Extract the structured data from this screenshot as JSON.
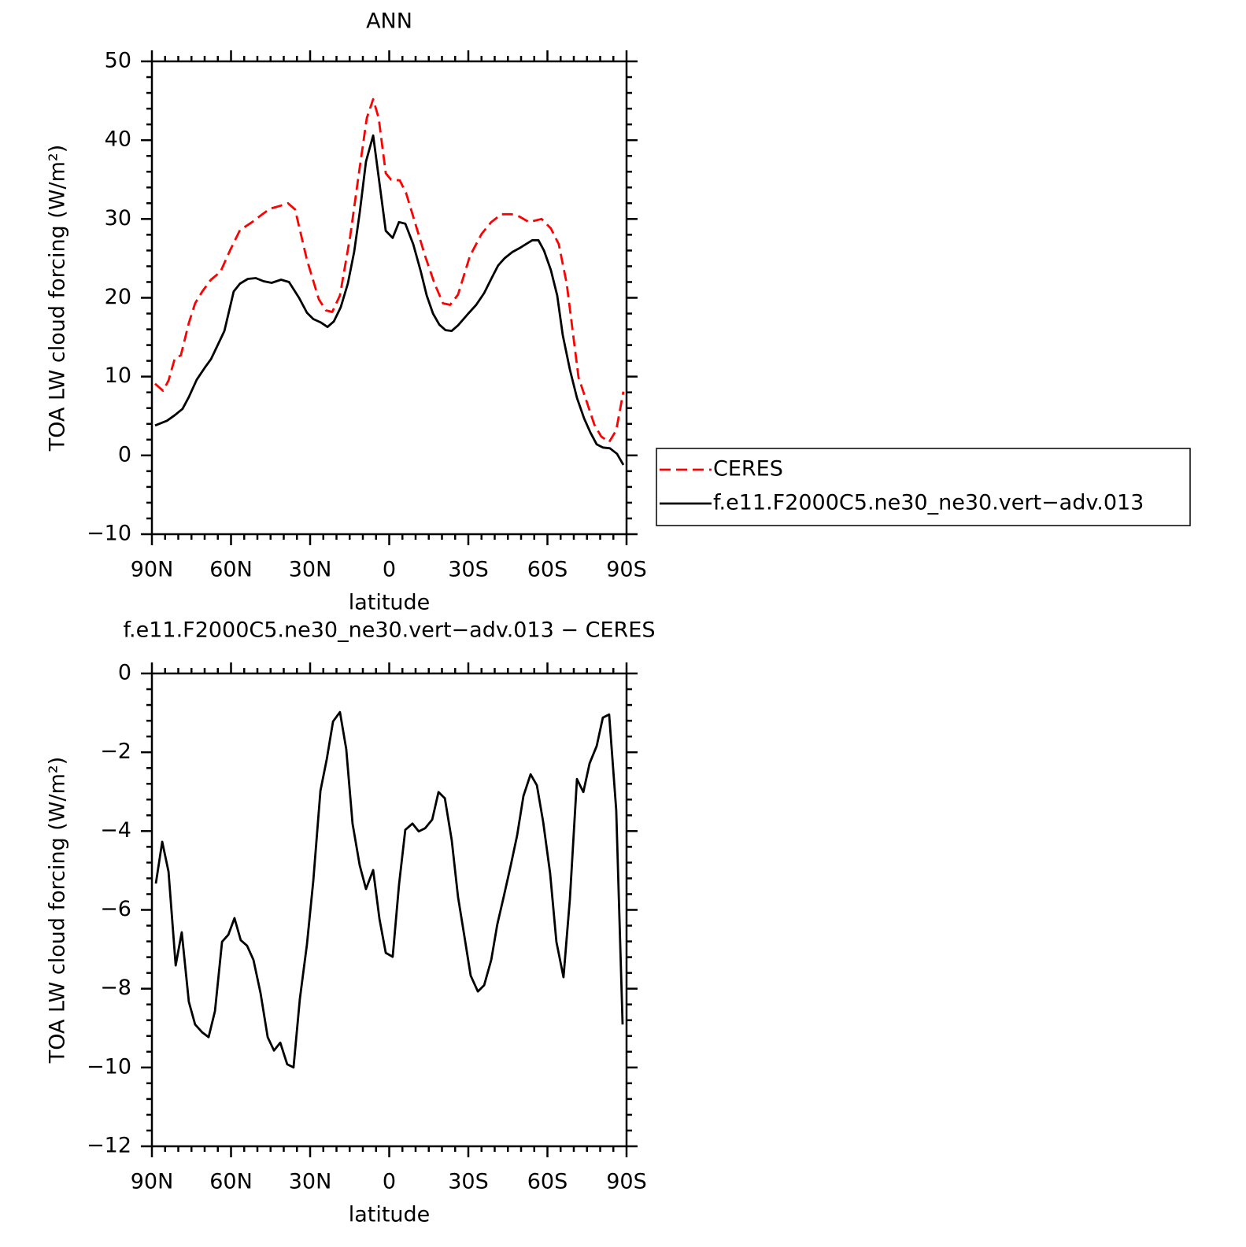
{
  "chart_data": [
    {
      "type": "line",
      "title": "ANN",
      "x_label": "latitude",
      "y_label": "TOA LW cloud forcing (W/m²)",
      "xlim": [
        90,
        -90
      ],
      "xticks": [
        {
          "value": 90,
          "label": "90N"
        },
        {
          "value": 60,
          "label": "60N"
        },
        {
          "value": 30,
          "label": "30N"
        },
        0,
        {
          "value": -30,
          "label": "30S"
        },
        {
          "value": -60,
          "label": "60S"
        },
        {
          "value": -90,
          "label": "90S"
        }
      ],
      "ylim": [
        -10,
        50
      ],
      "yticks": [
        {
          "value": -10,
          "label": "−10"
        },
        0,
        10,
        20,
        30,
        40,
        50
      ],
      "legend": "outside-right",
      "series": [
        {
          "name": "CERES",
          "color": "#ff0000",
          "dash": "dashed",
          "x": [
            88.8,
            85.8,
            83.7,
            81.3,
            79,
            76,
            73.6,
            70.9,
            67.6,
            64,
            60.4,
            56.6,
            52,
            48.5,
            45.2,
            41,
            38.4,
            35.7,
            31.2,
            26.7,
            24,
            21.6,
            18.7,
            14.8,
            11.5,
            8.5,
            6.1,
            4,
            1.3,
            -0.7,
            -4,
            -6.4,
            -10,
            -13.6,
            -17.2,
            -20.4,
            -23.1,
            -26.1,
            -30.6,
            -35,
            -38.7,
            -42.5,
            -46.4,
            -49.4,
            -53,
            -57.8,
            -61.3,
            -64.3,
            -67.3,
            -71.8,
            -74.8,
            -77.8,
            -80.4,
            -83.4,
            -86.1,
            -88.8
          ],
          "values": [
            9.1,
            8.2,
            9.5,
            12.3,
            12.7,
            16.8,
            19.3,
            20.8,
            22.3,
            23.3,
            26.0,
            28.6,
            29.6,
            30.5,
            31.3,
            31.7,
            32.0,
            31.2,
            24.8,
            19.8,
            18.4,
            18.2,
            20.3,
            27.8,
            35.8,
            42.8,
            45.2,
            42.8,
            35.8,
            35.0,
            34.9,
            33.3,
            29.3,
            25.3,
            21.8,
            19.3,
            19.1,
            20.4,
            25.3,
            28.1,
            29.6,
            30.6,
            30.6,
            30.3,
            29.6,
            30.0,
            28.8,
            26.8,
            21.8,
            9.9,
            6.9,
            3.9,
            2.4,
            1.7,
            3.2,
            8.1
          ]
        },
        {
          "name": "f.e11.F2000C5.ne30_ne30.vert−adv.013",
          "color": "#000000",
          "dash": "solid",
          "x": [
            88.8,
            84.3,
            81.3,
            78.4,
            76,
            73,
            70,
            67.6,
            65.2,
            62.5,
            59,
            56.6,
            53.6,
            50.6,
            47.6,
            44.6,
            41,
            38,
            34.2,
            31.2,
            28.8,
            26.1,
            23.4,
            21,
            18.4,
            15.7,
            13.3,
            11.2,
            8.8,
            6.1,
            4,
            1.3,
            -1.3,
            -3.7,
            -6.1,
            -9.1,
            -12,
            -14.2,
            -16.6,
            -19,
            -21.3,
            -23.7,
            -26.1,
            -30,
            -33,
            -36,
            -39,
            -41.3,
            -43.7,
            -46.7,
            -49.4,
            -51.8,
            -54.2,
            -56.6,
            -58.7,
            -61.3,
            -63.7,
            -65.8,
            -68.5,
            -71.2,
            -73.9,
            -76.3,
            -78.7,
            -81,
            -83.7,
            -86.4,
            -88.8
          ],
          "values": [
            3.8,
            4.4,
            5.1,
            5.9,
            7.4,
            9.6,
            11.1,
            12.2,
            13.9,
            15.8,
            20.8,
            21.8,
            22.4,
            22.5,
            22.1,
            21.9,
            22.3,
            22.0,
            20.0,
            18.1,
            17.3,
            16.9,
            16.3,
            17.0,
            18.8,
            21.8,
            25.8,
            30.8,
            37.3,
            40.6,
            35.3,
            28.5,
            27.6,
            29.6,
            29.4,
            26.8,
            23.3,
            20.3,
            18.0,
            16.6,
            15.9,
            15.8,
            16.5,
            18.0,
            19.1,
            20.6,
            22.6,
            24.1,
            25.0,
            25.8,
            26.3,
            26.8,
            27.3,
            27.3,
            26.0,
            23.5,
            20.3,
            15.3,
            10.9,
            7.3,
            4.7,
            2.9,
            1.4,
            1.0,
            0.9,
            0.2,
            -1.2
          ]
        }
      ]
    },
    {
      "type": "line",
      "title": "f.e11.F2000C5.ne30_ne30.vert−adv.013 − CERES",
      "x_label": "latitude",
      "y_label": "TOA LW cloud forcing (W/m²)",
      "xlim": [
        90,
        -90
      ],
      "xticks": [
        {
          "value": 90,
          "label": "90N"
        },
        {
          "value": 60,
          "label": "60N"
        },
        {
          "value": 30,
          "label": "30N"
        },
        0,
        {
          "value": -30,
          "label": "30S"
        },
        {
          "value": -60,
          "label": "60S"
        },
        {
          "value": -90,
          "label": "90S"
        }
      ],
      "ylim": [
        -12,
        0
      ],
      "yticks": [
        {
          "value": -12,
          "label": "−12"
        },
        {
          "value": -10,
          "label": "−10"
        },
        {
          "value": -8,
          "label": "−8"
        },
        {
          "value": -6,
          "label": "−6"
        },
        {
          "value": -4,
          "label": "−4"
        },
        {
          "value": -2,
          "label": "−2"
        },
        0
      ],
      "series": [
        {
          "color": "#000000",
          "dash": "solid",
          "x": [
            88.5,
            86.1,
            83.7,
            81,
            78.7,
            76,
            73.6,
            70.9,
            68.5,
            66.1,
            63.4,
            61,
            58.7,
            56.3,
            53.9,
            51.5,
            48.8,
            46.1,
            43.7,
            41.3,
            38.7,
            36.3,
            33.9,
            31.2,
            28.8,
            26.1,
            23.7,
            21.3,
            18.7,
            16.3,
            13.9,
            11.2,
            8.8,
            6.1,
            3.7,
            1.3,
            -1.3,
            -3.7,
            -6.1,
            -8.8,
            -11.2,
            -13.6,
            -16.3,
            -18.7,
            -21.1,
            -23.7,
            -26.1,
            -28.5,
            -30.9,
            -33.6,
            -36,
            -38.7,
            -41,
            -43.4,
            -46.1,
            -48.5,
            -50.9,
            -53.6,
            -56,
            -58.4,
            -61,
            -63.4,
            -66.1,
            -68.5,
            -71.2,
            -73.6,
            -76,
            -78.7,
            -81,
            -83.4,
            -86.1,
            -88.5
          ],
          "values": [
            -5.33,
            -4.27,
            -5.03,
            -7.41,
            -6.57,
            -8.33,
            -8.91,
            -9.11,
            -9.23,
            -8.57,
            -6.81,
            -6.63,
            -6.21,
            -6.77,
            -6.91,
            -7.27,
            -8.11,
            -9.23,
            -9.57,
            -9.37,
            -9.92,
            -10.0,
            -8.27,
            -6.87,
            -5.27,
            -2.98,
            -2.18,
            -1.22,
            -0.98,
            -1.92,
            -3.81,
            -4.87,
            -5.47,
            -4.99,
            -6.23,
            -7.09,
            -7.19,
            -5.37,
            -3.97,
            -3.81,
            -4.01,
            -3.93,
            -3.71,
            -3.01,
            -3.17,
            -4.23,
            -5.67,
            -6.67,
            -7.67,
            -8.07,
            -7.91,
            -7.27,
            -6.37,
            -5.67,
            -4.87,
            -4.11,
            -3.11,
            -2.56,
            -2.84,
            -3.77,
            -5.07,
            -6.81,
            -7.71,
            -5.73,
            -2.68,
            -3.01,
            -2.28,
            -1.84,
            -1.12,
            -1.04,
            -3.47,
            -8.91
          ]
        }
      ]
    }
  ]
}
